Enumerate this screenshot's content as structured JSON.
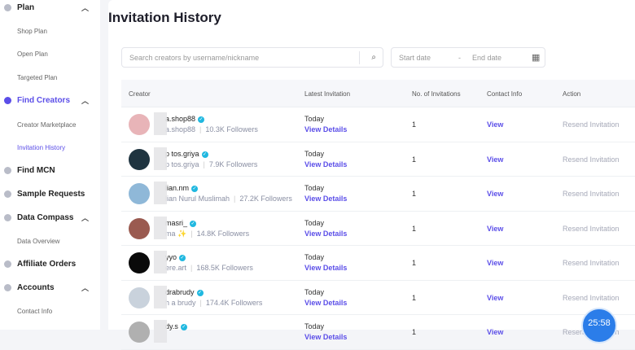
{
  "sidebar": {
    "items": [
      {
        "label": "Plan",
        "icon": "plan-icon",
        "expanded": true,
        "subs": [
          "Shop Plan",
          "Open Plan",
          "Targeted Plan"
        ]
      },
      {
        "label": "Find Creators",
        "icon": "find-creators-icon",
        "expanded": true,
        "active": true,
        "subs": [
          "Creator Marketplace",
          "Invitation History"
        ]
      },
      {
        "label": "Find MCN",
        "icon": "mcn-icon"
      },
      {
        "label": "Sample Requests",
        "icon": "sample-icon"
      },
      {
        "label": "Data Compass",
        "icon": "compass-icon",
        "expanded": true,
        "subs": [
          "Data Overview"
        ]
      },
      {
        "label": "Affiliate Orders",
        "icon": "orders-icon"
      },
      {
        "label": "Accounts",
        "icon": "accounts-icon",
        "expanded": true,
        "subs": [
          "Contact Info"
        ]
      }
    ]
  },
  "page": {
    "title": "Invitation History",
    "search_placeholder": "Search creators by username/nickname",
    "start_date": "Start date",
    "date_sep": "-",
    "end_date": "End date"
  },
  "table": {
    "headers": [
      "Creator",
      "Latest Invitation",
      "No. of Invitations",
      "Contact Info",
      "Action"
    ],
    "rows": [
      {
        "username": "a.shop88",
        "nickname": "a.shop88",
        "followers": "10.3K Followers",
        "latest": "Today",
        "details": "View Details",
        "count": "1",
        "contact": "View",
        "action": "Resend Invitation",
        "avatar": "#e8b4b8"
      },
      {
        "username": "p   tos.griya",
        "nickname": "p   tos.griya",
        "followers": "7.9K Followers",
        "latest": "Today",
        "details": "View Details",
        "count": "1",
        "contact": "View",
        "action": "Resend Invitation",
        "avatar": "#1f3440"
      },
      {
        "username": "lian.nm",
        "nickname": "lian Nurul Muslimah",
        "followers": "27.2K Followers",
        "latest": "Today",
        "details": "View Details",
        "count": "1",
        "contact": "View",
        "action": "Resend Invitation",
        "avatar": "#8fb8d8"
      },
      {
        "username": "masri_",
        "nickname": "ma ✨",
        "followers": "14.8K Followers",
        "latest": "Today",
        "details": "View Details",
        "count": "1",
        "contact": "View",
        "action": "Resend Invitation",
        "avatar": "#9a5a50"
      },
      {
        "username": "yyo",
        "nickname": "ere.art",
        "followers": "168.5K Followers",
        "latest": "Today",
        "details": "View Details",
        "count": "1",
        "contact": "View",
        "action": "Resend Invitation",
        "avatar": "#0a0a0a"
      },
      {
        "username": "drabrudy",
        "nickname": "h   a brudy",
        "followers": "174.4K Followers",
        "latest": "Today",
        "details": "View Details",
        "count": "1",
        "contact": "View",
        "action": "Resend Invitation",
        "avatar": "#c9d2dc"
      },
      {
        "username": "dy.s",
        "nickname": "",
        "followers": "",
        "latest": "Today",
        "details": "View Details",
        "count": "1",
        "contact": "View",
        "action": "Resend Invitation",
        "avatar": "#b0b0b0"
      }
    ]
  },
  "timer": "25:58",
  "colors": {
    "accent": "#5b4ee8",
    "verified": "#20b8e0",
    "timer": "#2b7de9"
  }
}
